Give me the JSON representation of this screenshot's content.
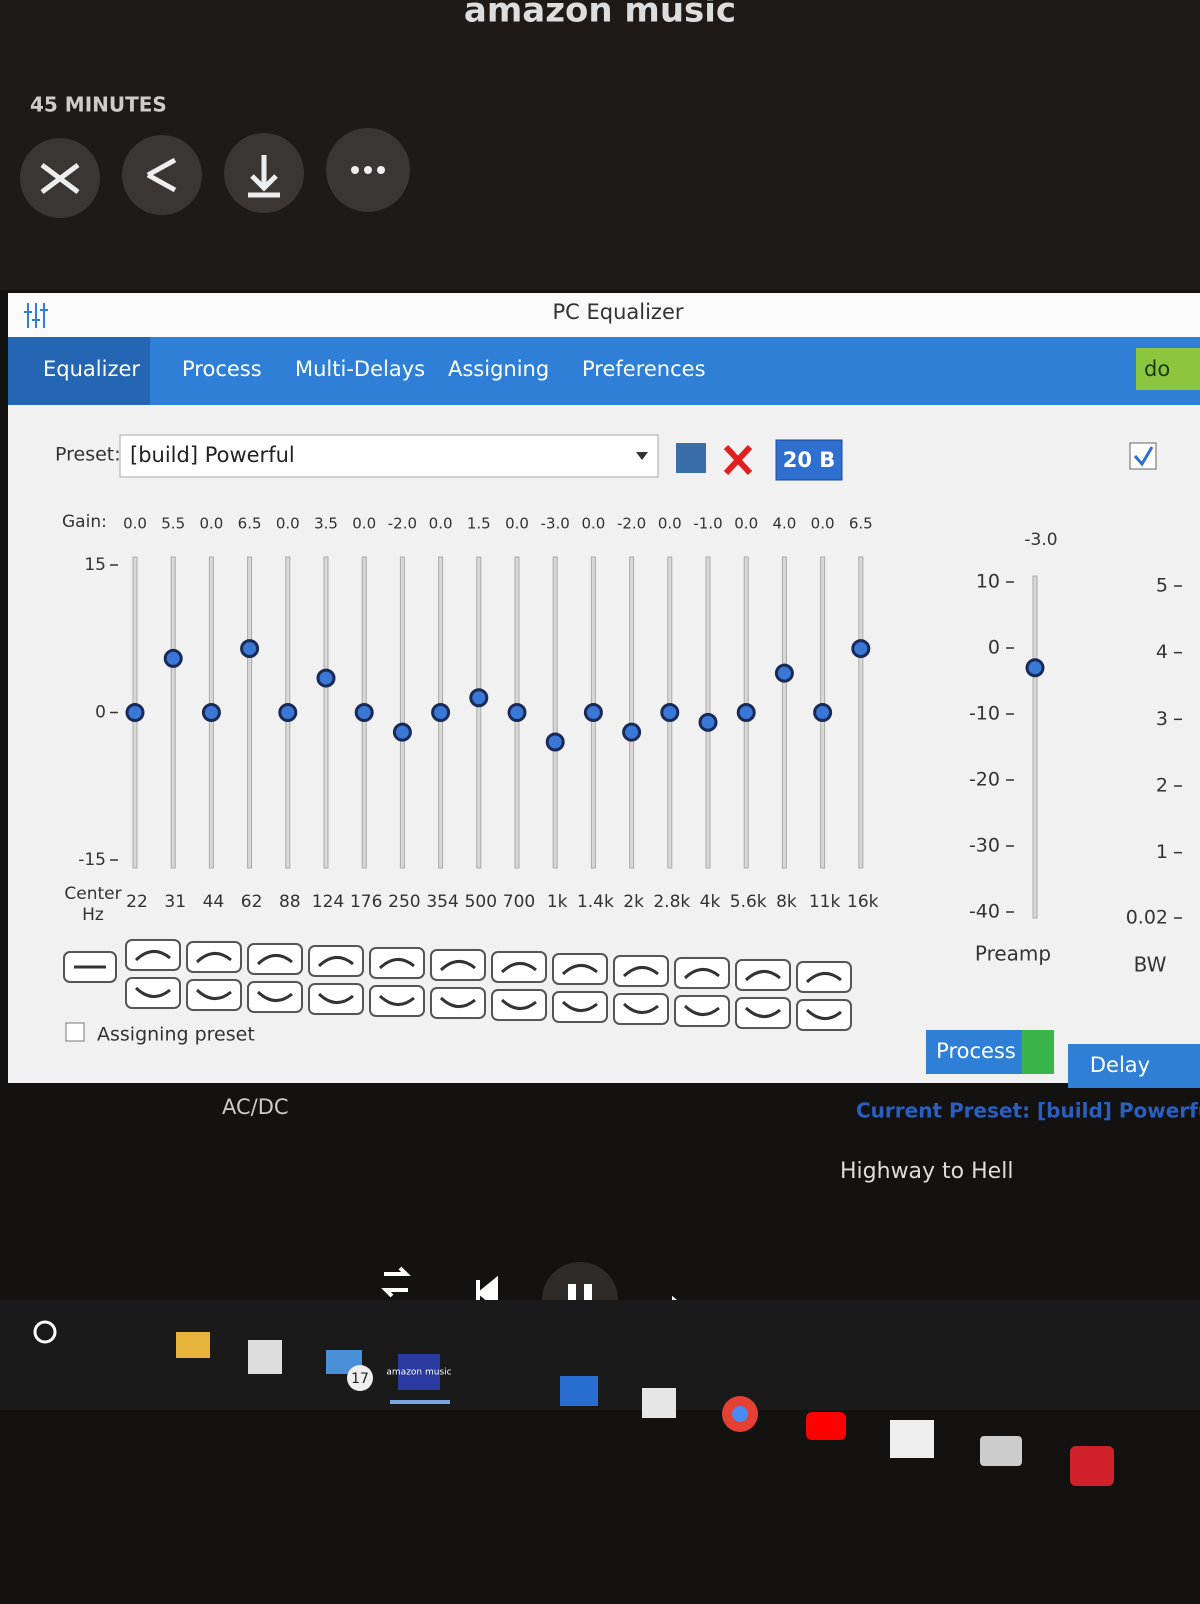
{
  "app": {
    "logo": "amazon music",
    "meta": "45 MINUTES",
    "artist": "AC/DC",
    "track": "Highway to Hell"
  },
  "window": {
    "title": "PC Equalizer",
    "tabs": [
      "Equalizer",
      "Process",
      "Multi-Delays",
      "Assigning",
      "Preferences",
      "do"
    ],
    "preset_label": "Preset:",
    "preset": "[build] Powerful",
    "bands_button": "20 B",
    "gain_label": "Gain:",
    "center_label": "Center Hz",
    "assigning_preset": "Assigning preset",
    "buttons": [
      "Process",
      "Delay"
    ],
    "current_preset": "Current Preset: [build] Powerful"
  },
  "equalizer": {
    "gains": [
      0,
      5.5,
      0,
      6.5,
      0,
      3.5,
      0,
      -2,
      0,
      1.5,
      0,
      -3,
      0,
      -2,
      0,
      -1,
      0,
      4,
      0,
      6.5
    ],
    "gain_labels": [
      "0.0",
      "5.5",
      "0.0",
      "6.5",
      "0.0",
      "3.5",
      "0.0",
      "-2.0",
      "0.0",
      "1.5",
      "0.0",
      "-3.0",
      "0.0",
      "-2.0",
      "0.0",
      "-1.0",
      "0.0",
      "4.0",
      "0.0",
      "6.5"
    ],
    "bands": [
      "22",
      "31",
      "44",
      "62",
      "88",
      "124",
      "176",
      "250",
      "354",
      "500",
      "700",
      "1k",
      "1.4k",
      "2k",
      "2.8k",
      "4k",
      "5.6k",
      "8k",
      "11k",
      "16k"
    ],
    "ylim": [
      -15,
      15
    ],
    "yticks": [
      15,
      0,
      -15
    ]
  },
  "preamp": {
    "label": "Preamp",
    "value": -3,
    "value_label": "-3.0",
    "ylim": [
      -40,
      10
    ],
    "yticks": [
      10,
      0,
      -10,
      -20,
      -30,
      -40
    ]
  },
  "bandwidth": {
    "label": "BW",
    "ylim": [
      0.02,
      5
    ],
    "yticks": [
      5,
      4,
      3,
      2,
      1,
      0.02
    ]
  },
  "taskbar": {
    "mail_badge": "17",
    "music_icon": "amazon music"
  }
}
